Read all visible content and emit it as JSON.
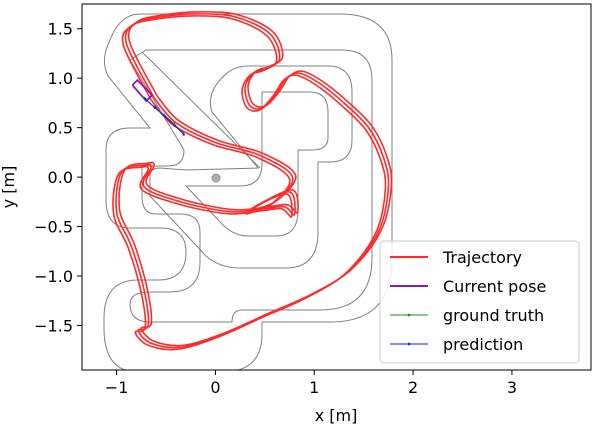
{
  "chart_data": {
    "type": "line",
    "title": "",
    "xlabel": "x [m]",
    "ylabel": "y [m]",
    "xlim": [
      -1.35,
      3.8
    ],
    "ylim": [
      -1.95,
      1.75
    ],
    "x_ticks": [
      -1,
      0,
      1,
      2,
      3
    ],
    "y_ticks": [
      -1.5,
      -1.0,
      -0.5,
      0.0,
      0.5,
      1.0,
      1.5
    ],
    "x_tick_labels": [
      "−1",
      "0",
      "1",
      "2",
      "3"
    ],
    "y_tick_labels": [
      "−1.5",
      "−1.0",
      "−0.5",
      "0.0",
      "0.5",
      "1.0",
      "1.5"
    ],
    "grid": false,
    "legend_position": "lower-right",
    "series": [
      {
        "name": "Trajectory",
        "color": "#ff2a2a",
        "x": [
          -0.62,
          -0.4,
          0.0,
          0.45,
          0.78,
          0.6,
          0.35,
          0.4,
          0.75,
          0.8,
          0.7,
          0.5,
          0.15,
          -0.35,
          -0.72,
          -0.65,
          -0.72,
          -0.95,
          -1.0,
          -0.85,
          -0.72,
          -0.68,
          -0.78,
          -0.65,
          -0.35,
          0.05,
          0.5,
          0.95,
          1.35,
          1.65,
          1.75,
          1.7,
          1.55,
          1.3,
          1.05,
          0.85,
          0.72,
          0.62,
          0.48,
          0.35,
          0.3,
          0.38,
          0.52,
          0.65,
          0.55,
          0.2,
          -0.2,
          -0.55,
          -0.82,
          -0.9,
          -0.62
        ],
        "y": [
          0.8,
          0.55,
          0.35,
          0.22,
          0.0,
          -0.25,
          -0.35,
          -0.3,
          -0.15,
          -0.38,
          -0.3,
          -0.32,
          -0.35,
          -0.25,
          -0.1,
          0.1,
          0.12,
          0.05,
          -0.35,
          -0.7,
          -1.15,
          -1.5,
          -1.55,
          -1.68,
          -1.72,
          -1.6,
          -1.4,
          -1.2,
          -0.95,
          -0.55,
          -0.1,
          0.2,
          0.5,
          0.75,
          0.95,
          1.05,
          1.0,
          0.85,
          0.7,
          0.72,
          0.9,
          1.05,
          1.1,
          1.2,
          1.45,
          1.62,
          1.65,
          1.62,
          1.55,
          1.35,
          0.8
        ]
      },
      {
        "name": "Current pose",
        "color": "#8b1aa8",
        "x": [
          -0.84,
          -0.79,
          -0.64,
          -0.7,
          -0.84
        ],
        "y": [
          0.93,
          0.98,
          0.83,
          0.77,
          0.93
        ]
      },
      {
        "name": "ground truth",
        "color": "#1a8c1a",
        "x": [
          -0.72,
          -0.62,
          -0.52,
          -0.42,
          -0.33
        ],
        "y": [
          0.8,
          0.71,
          0.63,
          0.54,
          0.45
        ]
      },
      {
        "name": "prediction",
        "color": "#1a1aff",
        "x": [
          -0.71,
          -0.61,
          -0.51,
          -0.41,
          -0.32
        ],
        "y": [
          0.79,
          0.7,
          0.61,
          0.52,
          0.43
        ]
      }
    ]
  }
}
